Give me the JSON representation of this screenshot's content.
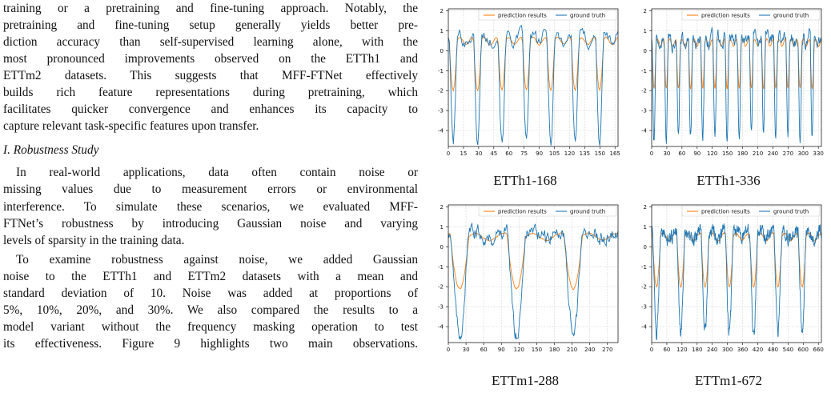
{
  "paragraph1_lines": [
    "training or a pretraining and fine-tuning approach. Notably, the",
    "pretraining and fine-tuning setup generally yields better pre-",
    "diction accuracy than self-supervised learning alone, with the",
    "most pronounced improvements observed on the ETTh1 and",
    "ETTm2 datasets. This suggests that MFF-FTNet effectively",
    "builds rich feature representations during pretraining, which",
    "facilitates quicker convergence and enhances its capacity to",
    "capture relevant task-specific features upon transfer."
  ],
  "section_title": "I. Robustness Study",
  "paragraph2_lines": [
    "In real-world applications, data often contain noise or",
    "missing values due to measurement errors or environmental",
    "interference. To simulate these scenarios, we evaluated MFF-",
    "FTNet’s robustness by introducing Gaussian noise and varying",
    "levels of sparsity in the training data."
  ],
  "paragraph3_lines": [
    "To examine robustness against noise, we added Gaussian",
    "noise to the ETTh1 and ETTm2 datasets with a mean and",
    "standard deviation of 10. Noise was added at proportions of",
    "5%, 10%, 20%, and 30%. We also compared the results to a",
    "model variant without the frequency masking operation to test",
    "its effectiveness. Figure 9 highlights two main observations."
  ],
  "legend": {
    "prediction": "prediction results",
    "truth": "ground truth"
  },
  "colors": {
    "prediction": "#ff7f0e",
    "truth": "#1f77b4"
  },
  "chart_data": [
    {
      "type": "line",
      "caption": "ETTh1-168",
      "xlim": [
        0,
        168
      ],
      "ylim": [
        -4.8,
        2.1
      ],
      "xticks": [
        0,
        15,
        30,
        45,
        60,
        75,
        90,
        105,
        120,
        135,
        150,
        165
      ],
      "yticks": [
        -4,
        -3,
        -2,
        -1,
        0,
        1,
        2
      ],
      "cycles": 7,
      "series": [
        {
          "name": "prediction results",
          "baseline": 0.5,
          "trough": -2.0
        },
        {
          "name": "ground truth",
          "baseline": 0.6,
          "trough": -4.6
        }
      ]
    },
    {
      "type": "line",
      "caption": "ETTh1-336",
      "xlim": [
        0,
        336
      ],
      "ylim": [
        -4.8,
        2.1
      ],
      "xticks": [
        0,
        30,
        60,
        90,
        120,
        150,
        180,
        210,
        240,
        270,
        300,
        330
      ],
      "yticks": [
        -4,
        -3,
        -2,
        -1,
        0,
        1,
        2
      ],
      "cycles": 14,
      "series": [
        {
          "name": "prediction results",
          "baseline": 0.4,
          "trough": -1.9
        },
        {
          "name": "ground truth",
          "baseline": 0.5,
          "trough": -4.4
        }
      ]
    },
    {
      "type": "line",
      "caption": "ETTm1-288",
      "xlim": [
        0,
        288
      ],
      "ylim": [
        -4.8,
        2.1
      ],
      "xticks": [
        0,
        30,
        60,
        90,
        120,
        150,
        180,
        210,
        240,
        270
      ],
      "yticks": [
        -4,
        -3,
        -2,
        -1,
        0,
        1,
        2
      ],
      "cycles": 3,
      "series": [
        {
          "name": "prediction results",
          "baseline": 0.5,
          "trough": -2.1
        },
        {
          "name": "ground truth",
          "baseline": 0.6,
          "trough": -4.4
        }
      ]
    },
    {
      "type": "line",
      "caption": "ETTm1-672",
      "xlim": [
        0,
        672
      ],
      "ylim": [
        -4.8,
        2.1
      ],
      "xticks": [
        0,
        60,
        120,
        180,
        240,
        300,
        360,
        420,
        480,
        540,
        600,
        660
      ],
      "yticks": [
        -4,
        -3,
        -2,
        -1,
        0,
        1,
        2
      ],
      "cycles": 7,
      "series": [
        {
          "name": "prediction results",
          "baseline": 0.5,
          "trough": -2.0
        },
        {
          "name": "ground truth",
          "baseline": 0.6,
          "trough": -4.3
        }
      ]
    }
  ]
}
